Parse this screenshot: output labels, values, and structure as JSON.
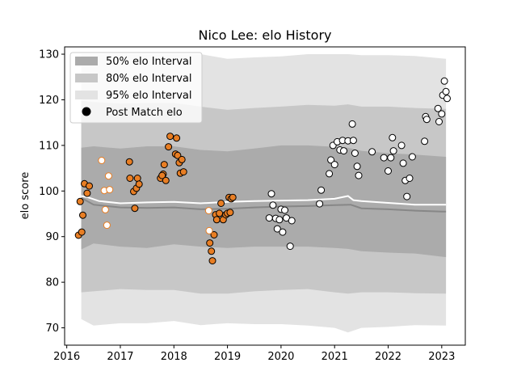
{
  "chart_data": {
    "type": "scatter",
    "title": "Nico Lee: elo History",
    "xlabel": "",
    "ylabel": "elo score",
    "xlim": [
      2015.96,
      2023.44
    ],
    "ylim": [
      66.2,
      131.6
    ],
    "xticks": [
      2016,
      2017,
      2018,
      2019,
      2020,
      2021,
      2022,
      2023
    ],
    "yticks": [
      70,
      80,
      90,
      100,
      110,
      120,
      130
    ],
    "legend": {
      "position": "top-left",
      "entries": [
        "50% elo Interval",
        "80% elo Interval",
        "95% elo Interval",
        "Post Match elo"
      ]
    },
    "bands": {
      "x": [
        2016.27,
        2016.5,
        2017.0,
        2017.5,
        2018.0,
        2018.5,
        2019.0,
        2019.5,
        2020.0,
        2020.5,
        2021.0,
        2021.25,
        2021.5,
        2022.0,
        2022.5,
        2023.08
      ],
      "band95_upper": [
        130.0,
        130.0,
        130.0,
        130.0,
        130.0,
        130.0,
        129.0,
        129.3,
        129.5,
        130.0,
        130.0,
        130.0,
        129.8,
        129.8,
        129.6,
        129.0
      ],
      "band95_lower": [
        71.9,
        70.5,
        71.0,
        71.0,
        71.5,
        70.6,
        71.0,
        70.8,
        70.8,
        70.5,
        70.0,
        69.0,
        70.0,
        70.2,
        70.6,
        70.5
      ],
      "band80_upper": [
        119.8,
        119.5,
        119.2,
        119.3,
        119.3,
        118.5,
        117.8,
        118.2,
        118.5,
        118.9,
        118.7,
        119.0,
        118.5,
        118.5,
        118.2,
        118.0
      ],
      "band80_lower": [
        77.8,
        78.0,
        78.5,
        78.3,
        78.3,
        77.5,
        77.5,
        78.0,
        78.3,
        78.5,
        77.8,
        77.5,
        77.8,
        77.8,
        77.6,
        77.5
      ],
      "band50_upper": [
        109.5,
        109.8,
        109.3,
        109.8,
        109.8,
        109.0,
        108.7,
        109.3,
        110.0,
        110.0,
        109.7,
        109.5,
        108.8,
        108.3,
        108.0,
        107.5
      ],
      "band50_lower": [
        87.2,
        88.5,
        87.8,
        87.5,
        88.3,
        87.8,
        87.5,
        87.8,
        87.8,
        87.8,
        87.5,
        87.3,
        86.8,
        86.5,
        86.3,
        85.5
      ]
    },
    "mean_line": {
      "x": [
        2016.27,
        2016.4,
        2016.6,
        2017.0,
        2017.5,
        2018.0,
        2018.5,
        2019.0,
        2019.5,
        2020.0,
        2020.5,
        2021.0,
        2021.25,
        2021.35,
        2021.5,
        2022.0,
        2022.5,
        2023.0,
        2023.08
      ],
      "y": [
        98.9,
        98.6,
        97.8,
        97.3,
        97.5,
        97.6,
        97.3,
        97.6,
        97.8,
        97.9,
        98.0,
        98.3,
        98.9,
        98.0,
        97.8,
        97.4,
        97.0,
        97.0,
        97.0
      ]
    },
    "median_line": {
      "x": [
        2016.27,
        2016.5,
        2017.0,
        2017.5,
        2018.0,
        2018.5,
        2019.0,
        2019.5,
        2020.0,
        2020.5,
        2021.0,
        2021.3,
        2021.5,
        2022.0,
        2022.5,
        2023.0,
        2023.08
      ],
      "y": [
        98.5,
        97.0,
        96.4,
        96.3,
        96.4,
        96.0,
        96.1,
        96.4,
        96.6,
        96.7,
        96.9,
        97.0,
        96.2,
        96.0,
        95.7,
        95.5,
        95.5
      ]
    },
    "series": [
      {
        "name": "orange-filled",
        "color": "#e87e24",
        "points": [
          [
            2016.22,
            90.3
          ],
          [
            2016.28,
            91.0
          ],
          [
            2016.25,
            97.7
          ],
          [
            2016.33,
            101.6
          ],
          [
            2016.3,
            94.7
          ],
          [
            2016.38,
            99.5
          ],
          [
            2016.42,
            101.1
          ],
          [
            2017.17,
            106.4
          ],
          [
            2017.18,
            102.8
          ],
          [
            2017.25,
            99.9
          ],
          [
            2017.3,
            100.6
          ],
          [
            2017.32,
            102.8
          ],
          [
            2017.35,
            101.5
          ],
          [
            2017.27,
            96.2
          ],
          [
            2017.75,
            102.8
          ],
          [
            2017.8,
            103.7
          ],
          [
            2017.78,
            103.4
          ],
          [
            2017.85,
            102.3
          ],
          [
            2017.82,
            105.8
          ],
          [
            2017.9,
            109.7
          ],
          [
            2017.93,
            112.0
          ],
          [
            2018.03,
            108.1
          ],
          [
            2018.05,
            111.6
          ],
          [
            2018.07,
            107.8
          ],
          [
            2018.1,
            106.2
          ],
          [
            2018.12,
            103.9
          ],
          [
            2018.15,
            106.9
          ],
          [
            2018.18,
            104.2
          ],
          [
            2018.67,
            88.6
          ],
          [
            2018.7,
            86.8
          ],
          [
            2018.72,
            84.7
          ],
          [
            2018.75,
            90.4
          ],
          [
            2018.78,
            94.8
          ],
          [
            2018.8,
            93.7
          ],
          [
            2018.85,
            95.1
          ],
          [
            2018.88,
            97.3
          ],
          [
            2018.92,
            93.7
          ],
          [
            2018.97,
            94.8
          ],
          [
            2019.0,
            95.1
          ],
          [
            2019.03,
            98.6
          ],
          [
            2019.07,
            98.3
          ],
          [
            2019.1,
            98.6
          ],
          [
            2019.05,
            95.3
          ]
        ]
      },
      {
        "name": "orange-hollow",
        "color": "#e87e24",
        "points": [
          [
            2016.65,
            106.7
          ],
          [
            2016.7,
            100.1
          ],
          [
            2016.72,
            95.9
          ],
          [
            2016.75,
            92.5
          ],
          [
            2016.78,
            103.3
          ],
          [
            2016.8,
            100.3
          ],
          [
            2018.65,
            95.7
          ],
          [
            2018.66,
            91.3
          ]
        ]
      },
      {
        "name": "white",
        "color": "#ffffff",
        "points": [
          [
            2019.78,
            94.1
          ],
          [
            2019.82,
            99.4
          ],
          [
            2019.85,
            96.9
          ],
          [
            2019.9,
            94.0
          ],
          [
            2019.93,
            91.7
          ],
          [
            2019.97,
            93.7
          ],
          [
            2020.0,
            96.0
          ],
          [
            2020.03,
            91.0
          ],
          [
            2020.07,
            95.8
          ],
          [
            2020.1,
            94.1
          ],
          [
            2020.17,
            87.9
          ],
          [
            2020.2,
            93.5
          ],
          [
            2020.72,
            97.2
          ],
          [
            2020.75,
            100.2
          ],
          [
            2020.9,
            103.8
          ],
          [
            2020.93,
            106.8
          ],
          [
            2020.97,
            110.0
          ],
          [
            2021.0,
            105.8
          ],
          [
            2021.05,
            110.8
          ],
          [
            2021.1,
            109.0
          ],
          [
            2021.15,
            111.1
          ],
          [
            2021.17,
            108.8
          ],
          [
            2021.25,
            111.0
          ],
          [
            2021.35,
            111.1
          ],
          [
            2021.33,
            114.7
          ],
          [
            2021.38,
            108.3
          ],
          [
            2021.42,
            105.4
          ],
          [
            2021.45,
            103.4
          ],
          [
            2021.7,
            108.6
          ],
          [
            2021.92,
            107.3
          ],
          [
            2022.0,
            104.4
          ],
          [
            2022.05,
            107.3
          ],
          [
            2022.08,
            111.7
          ],
          [
            2022.1,
            108.8
          ],
          [
            2022.25,
            110.0
          ],
          [
            2022.28,
            106.1
          ],
          [
            2022.32,
            102.3
          ],
          [
            2022.35,
            98.8
          ],
          [
            2022.4,
            102.8
          ],
          [
            2022.45,
            107.5
          ],
          [
            2022.68,
            110.9
          ],
          [
            2022.7,
            116.3
          ],
          [
            2022.72,
            115.7
          ],
          [
            2022.93,
            118.1
          ],
          [
            2022.95,
            115.2
          ],
          [
            2023.0,
            116.9
          ],
          [
            2023.02,
            121.0
          ],
          [
            2023.05,
            124.1
          ],
          [
            2023.08,
            121.8
          ],
          [
            2023.1,
            120.3
          ]
        ]
      }
    ],
    "colors": {
      "band50": "#ababab",
      "band80": "#c7c7c7",
      "band95": "#e3e3e3",
      "mean": "#ffffff",
      "median": "#878787",
      "legend_marker": "#000000"
    }
  }
}
